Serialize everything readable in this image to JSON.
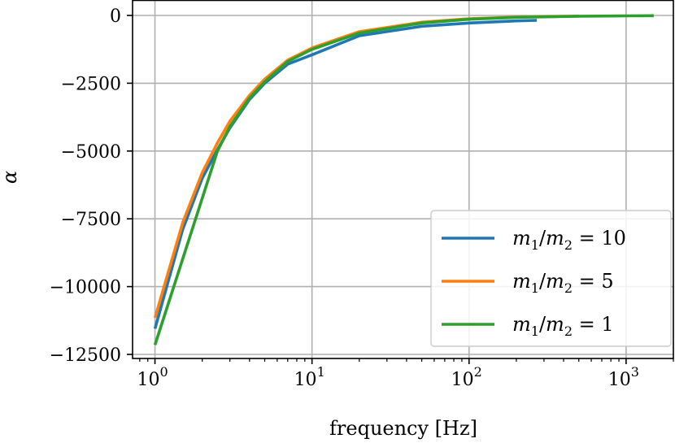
{
  "chart_data": {
    "type": "line",
    "title": "",
    "xlabel": "frequency [Hz]",
    "ylabel": "α",
    "xscale": "log",
    "xlim": [
      0.72,
      2000
    ],
    "ylim": [
      -12500,
      0
    ],
    "x_ticks": [
      {
        "value": 1,
        "base": "10",
        "exp": "0"
      },
      {
        "value": 10,
        "base": "10",
        "exp": "1"
      },
      {
        "value": 100,
        "base": "10",
        "exp": "2"
      },
      {
        "value": 1000,
        "base": "10",
        "exp": "3"
      }
    ],
    "y_ticks": [
      {
        "value": 0,
        "label": "0"
      },
      {
        "value": -2500,
        "label": "−2500"
      },
      {
        "value": -5000,
        "label": "−5000"
      },
      {
        "value": -7500,
        "label": "−7500"
      },
      {
        "value": -10000,
        "label": "−10000"
      },
      {
        "value": -12500,
        "label": "−12500"
      }
    ],
    "grid": true,
    "legend_position": "lower-right",
    "series": [
      {
        "name": "m1/m2 = 10",
        "legend": {
          "a": "m",
          "a_sub": "1",
          "b": "m",
          "b_sub": "2",
          "op": "/",
          "eq": " = ",
          "val": "10"
        },
        "color": "#1f77b4",
        "x": [
          1,
          1.5,
          2,
          2.5,
          3,
          4,
          5,
          7,
          10,
          20,
          50,
          100,
          200,
          270
        ],
        "y": [
          -11550,
          -7900,
          -6000,
          -4950,
          -4150,
          -3100,
          -2500,
          -1800,
          -1450,
          -750,
          -400,
          -280,
          -200,
          -180
        ]
      },
      {
        "name": "m1/m2 = 5",
        "legend": {
          "a": "m",
          "a_sub": "1",
          "b": "m",
          "b_sub": "2",
          "op": "/",
          "eq": " = ",
          "val": "5"
        },
        "color": "#ff7f0e",
        "x": [
          1,
          1.5,
          2,
          2.5,
          3,
          4,
          5,
          7,
          10,
          20,
          50,
          100,
          200,
          500
        ],
        "y": [
          -11150,
          -7650,
          -5800,
          -4700,
          -3900,
          -2950,
          -2350,
          -1650,
          -1200,
          -600,
          -250,
          -120,
          -60,
          -25
        ]
      },
      {
        "name": "m1/m2 = 1",
        "legend": {
          "a": "m",
          "a_sub": "1",
          "b": "m",
          "b_sub": "2",
          "op": "/",
          "eq": " = ",
          "val": "1"
        },
        "color": "#2ca02c",
        "x": [
          1,
          2.5,
          3,
          4,
          5,
          7,
          10,
          20,
          50,
          100,
          200,
          500,
          1000,
          1500
        ],
        "y": [
          -12150,
          -5000,
          -4100,
          -3050,
          -2450,
          -1700,
          -1250,
          -650,
          -280,
          -140,
          -70,
          -30,
          -15,
          -10
        ]
      }
    ]
  }
}
